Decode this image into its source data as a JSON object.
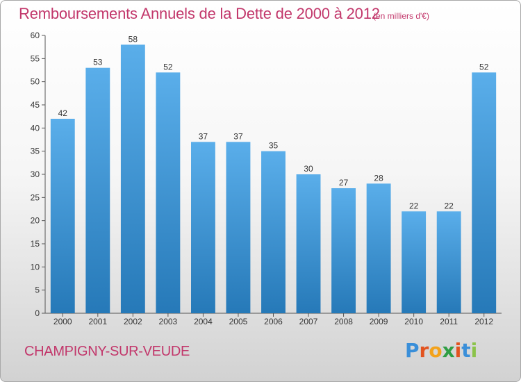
{
  "title": "Remboursements Annuels de la Dette de 2000 à 2012",
  "subtitle": "(en milliers d'€)",
  "commune": "CHAMPIGNY-SUR-VEUDE",
  "logo": {
    "text": "Proxiti",
    "letter_colors": [
      "#3a8fd9",
      "#e2531f",
      "#f3a21b",
      "#2f9e44",
      "#e2531f",
      "#3a8fd9",
      "#8bc34a"
    ]
  },
  "colors": {
    "bar_top": "#5aaeea",
    "bar_bottom": "#2679b8",
    "text": "#c2376b",
    "axis": "#555555"
  },
  "chart_data": {
    "type": "bar",
    "categories": [
      "2000",
      "2001",
      "2002",
      "2003",
      "2004",
      "2005",
      "2006",
      "2007",
      "2008",
      "2009",
      "2010",
      "2011",
      "2012"
    ],
    "values": [
      42,
      53,
      58,
      52,
      37,
      37,
      35,
      30,
      27,
      28,
      22,
      22,
      52
    ],
    "data_labels": [
      "42",
      "53",
      "58",
      "52",
      "37",
      "37",
      "35",
      "30",
      "27",
      "28",
      "22",
      "22",
      "52"
    ],
    "ylim": [
      0,
      60
    ],
    "y_ticks": [
      0,
      5,
      10,
      15,
      20,
      25,
      30,
      35,
      40,
      45,
      50,
      55,
      60
    ],
    "y_tick_labels": [
      "0",
      "5",
      "10",
      "15",
      "20",
      "25",
      "30",
      "35",
      "40",
      "45",
      "50",
      "55",
      "60"
    ],
    "grid": false
  }
}
